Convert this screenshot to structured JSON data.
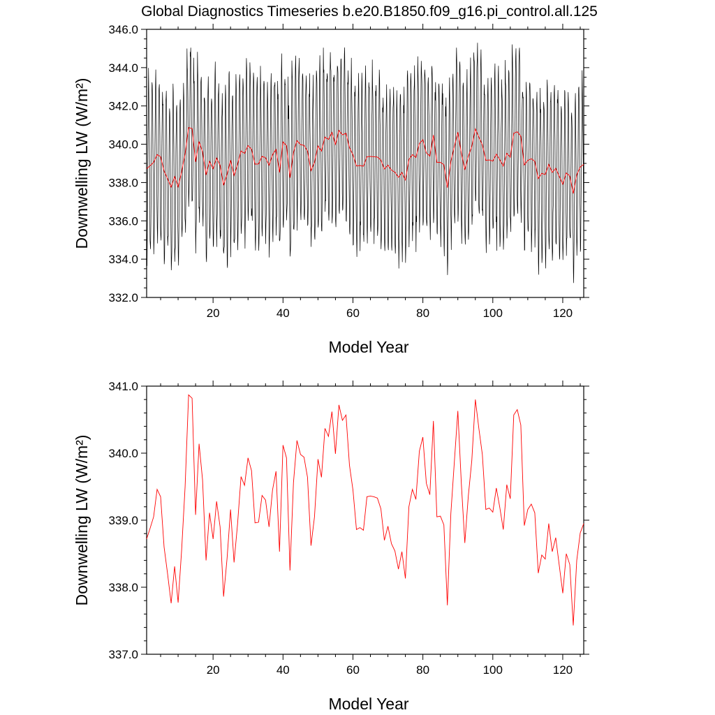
{
  "chart_data": [
    {
      "type": "line",
      "title": "Global Diagnostics Timeseries b.e20.B1850.f09_g16.pi_control.all.125",
      "xlabel": "Model Year",
      "ylabel": "Downwelling LW (W/m²)",
      "xlim": [
        1,
        126
      ],
      "ylim": [
        332.0,
        346.0
      ],
      "xticks": [
        20,
        40,
        60,
        80,
        100,
        120
      ],
      "yticks": [
        332.0,
        334.0,
        336.0,
        338.0,
        340.0,
        342.0,
        344.0,
        346.0
      ],
      "monthly_cycle": {
        "amplitude": 4.2,
        "noise": 0.6,
        "note": ""
      },
      "series": [
        {
          "name": "",
          "kind": "monthly",
          "color": "#000000"
        },
        {
          "name": "",
          "kind": "annual",
          "color": "#ff0000"
        }
      ]
    },
    {
      "type": "line",
      "xlabel": "Model Year",
      "ylabel": "Downwelling LW (W/m²)",
      "xlim": [
        1,
        126
      ],
      "ylim": [
        337.0,
        341.0
      ],
      "xticks": [
        20,
        40,
        60,
        80,
        100,
        120
      ],
      "yticks": [
        337.0,
        338.0,
        339.0,
        340.0,
        341.0
      ],
      "series": [
        {
          "name": "",
          "color": "#ff0000",
          "x": [
            1,
            2,
            3,
            4,
            5,
            6,
            7,
            8,
            9,
            10,
            11,
            12,
            13,
            14,
            15,
            16,
            17,
            18,
            19,
            20,
            21,
            22,
            23,
            24,
            25,
            26,
            27,
            28,
            29,
            30,
            31,
            32,
            33,
            34,
            35,
            36,
            37,
            38,
            39,
            40,
            41,
            42,
            43,
            44,
            45,
            46,
            47,
            48,
            49,
            50,
            51,
            52,
            53,
            54,
            55,
            56,
            57,
            58,
            59,
            60,
            61,
            62,
            63,
            64,
            65,
            66,
            67,
            68,
            69,
            70,
            71,
            72,
            73,
            74,
            75,
            76,
            77,
            78,
            79,
            80,
            81,
            82,
            83,
            84,
            85,
            86,
            87,
            88,
            89,
            90,
            91,
            92,
            93,
            94,
            95,
            96,
            97,
            98,
            99,
            100,
            101,
            102,
            103,
            104,
            105,
            106,
            107,
            108,
            109,
            110,
            111,
            112,
            113,
            114,
            115,
            116,
            117,
            118,
            119,
            120,
            121,
            122,
            123,
            124,
            125,
            126
          ],
          "y": [
            338.72,
            338.88,
            339.05,
            339.46,
            339.35,
            338.6,
            338.2,
            337.76,
            338.31,
            337.77,
            338.55,
            339.5,
            340.87,
            340.82,
            339.08,
            340.14,
            339.6,
            338.4,
            339.11,
            338.72,
            339.28,
            338.9,
            337.86,
            338.43,
            339.16,
            338.37,
            338.94,
            339.65,
            339.52,
            339.93,
            339.74,
            338.96,
            338.97,
            339.37,
            339.3,
            338.9,
            339.45,
            339.73,
            338.53,
            340.12,
            339.93,
            338.25,
            339.56,
            340.19,
            339.98,
            339.94,
            339.64,
            338.62,
            339.05,
            339.91,
            339.64,
            340.37,
            340.25,
            340.62,
            339.99,
            340.72,
            340.49,
            340.57,
            339.82,
            339.45,
            338.86,
            338.89,
            338.85,
            339.35,
            339.36,
            339.35,
            339.33,
            339.17,
            338.7,
            338.91,
            338.65,
            338.54,
            338.27,
            338.53,
            338.13,
            339.2,
            339.46,
            339.31,
            340.03,
            340.24,
            339.55,
            339.38,
            340.48,
            339.05,
            339.06,
            338.93,
            337.73,
            339.1,
            339.87,
            340.63,
            339.55,
            338.66,
            339.36,
            339.89,
            340.8,
            340.37,
            339.98,
            339.16,
            339.18,
            339.12,
            339.48,
            339.19,
            338.86,
            339.53,
            339.32,
            340.57,
            340.65,
            340.42,
            338.92,
            339.16,
            339.24,
            339.11,
            338.21,
            338.48,
            338.42,
            338.95,
            338.53,
            338.74,
            338.33,
            337.91,
            338.5,
            338.34,
            337.43,
            338.4,
            338.81,
            338.95
          ]
        }
      ]
    }
  ]
}
